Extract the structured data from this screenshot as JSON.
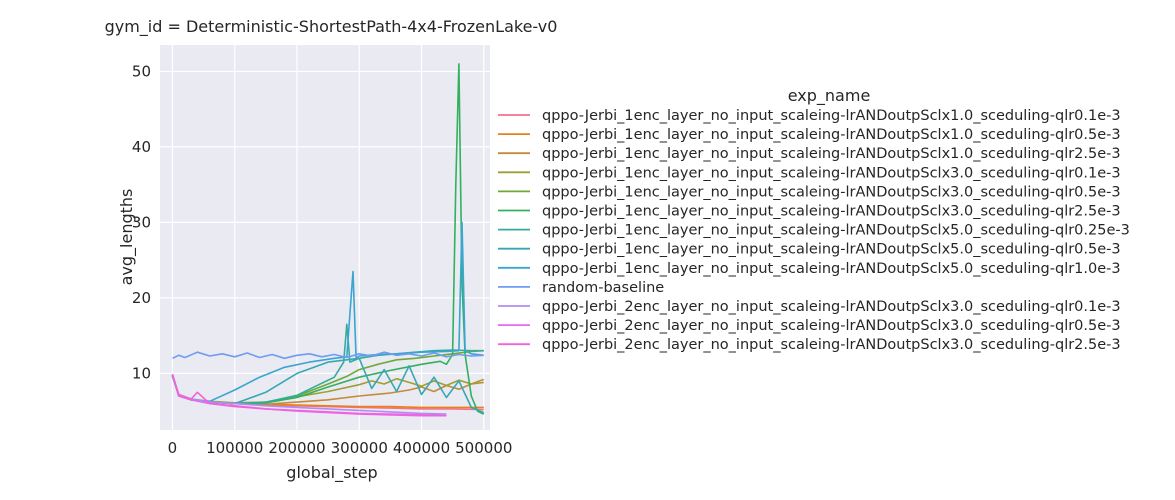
{
  "chart_data": {
    "type": "line",
    "title": "gym_id = Deterministic-ShortestPath-4x4-FrozenLake-v0",
    "xlabel": "global_step",
    "ylabel": "avg_lengths",
    "xlim": [
      -20000,
      510000
    ],
    "ylim": [
      2.5,
      53.5
    ],
    "x_ticks": [
      0,
      100000,
      200000,
      300000,
      400000,
      500000
    ],
    "x_tick_labels": [
      "0",
      "100000",
      "200000",
      "300000",
      "400000",
      "500000"
    ],
    "y_ticks": [
      10,
      20,
      30,
      40,
      50
    ],
    "y_tick_labels": [
      "10",
      "20",
      "30",
      "40",
      "50"
    ],
    "grid": true,
    "legend_title": "exp_name",
    "legend_position": "right",
    "series": [
      {
        "name": "qppo-Jerbi_1enc_layer_no_input_scaleing-lrANDoutpSclx1.0_sceduling-qlr0.1e-3",
        "color": "#f77189",
        "x": [
          0,
          10000,
          30000,
          60000,
          100000,
          150000,
          200000,
          250000,
          300000,
          350000,
          400000,
          450000,
          500000
        ],
        "y": [
          9.8,
          7.0,
          6.5,
          6.2,
          6.0,
          5.8,
          5.7,
          5.6,
          5.5,
          5.4,
          5.3,
          5.3,
          5.2
        ]
      },
      {
        "name": "qppo-Jerbi_1enc_layer_no_input_scaleing-lrANDoutpSclx1.0_sceduling-qlr0.5e-3",
        "color": "#e7811c",
        "x": [
          0,
          10000,
          30000,
          60000,
          100000,
          150000,
          200000,
          250000,
          300000,
          350000,
          400000,
          450000,
          500000
        ],
        "y": [
          9.6,
          7.2,
          6.6,
          6.2,
          6.0,
          5.9,
          5.8,
          5.7,
          5.6,
          5.6,
          5.5,
          5.5,
          5.5
        ]
      },
      {
        "name": "qppo-Jerbi_1enc_layer_no_input_scaleing-lrANDoutpSclx1.0_sceduling-qlr2.5e-3",
        "color": "#c48a3a",
        "x": [
          0,
          10000,
          30000,
          60000,
          100000,
          150000,
          200000,
          250000,
          300000,
          350000,
          380000,
          400000,
          420000,
          440000,
          460000,
          480000,
          500000
        ],
        "y": [
          9.7,
          7.2,
          6.6,
          6.2,
          6.0,
          5.9,
          6.2,
          6.5,
          7.0,
          7.4,
          7.8,
          8.2,
          7.6,
          8.4,
          7.9,
          8.6,
          8.8
        ]
      },
      {
        "name": "qppo-Jerbi_1enc_layer_no_input_scaleing-lrANDoutpSclx3.0_sceduling-qlr0.1e-3",
        "color": "#a19e32",
        "x": [
          0,
          10000,
          30000,
          60000,
          100000,
          150000,
          200000,
          250000,
          300000,
          320000,
          340000,
          360000,
          380000,
          400000,
          420000,
          440000,
          460000,
          480000,
          500000
        ],
        "y": [
          9.7,
          7.1,
          6.6,
          6.3,
          6.1,
          6.2,
          6.9,
          7.6,
          8.5,
          9.0,
          8.6,
          9.3,
          8.8,
          8.3,
          9.0,
          8.4,
          9.1,
          8.6,
          9.2
        ]
      },
      {
        "name": "qppo-Jerbi_1enc_layer_no_input_scaleing-lrANDoutpSclx3.0_sceduling-qlr0.5e-3",
        "color": "#6ea935",
        "x": [
          0,
          10000,
          30000,
          60000,
          100000,
          150000,
          200000,
          250000,
          280000,
          300000,
          330000,
          360000,
          390000,
          420000,
          450000,
          480000,
          500000
        ],
        "y": [
          9.8,
          7.2,
          6.5,
          6.2,
          6.0,
          6.1,
          7.0,
          8.6,
          9.6,
          10.5,
          11.2,
          11.8,
          12.0,
          12.3,
          12.6,
          12.9,
          13.0
        ]
      },
      {
        "name": "qppo-Jerbi_1enc_layer_no_input_scaleing-lrANDoutpSclx3.0_sceduling-qlr2.5e-3",
        "color": "#33b05e",
        "x": [
          0,
          10000,
          30000,
          60000,
          100000,
          150000,
          200000,
          250000,
          300000,
          350000,
          400000,
          430000,
          440000,
          450000,
          455000,
          460000,
          465000,
          470000,
          480000,
          490000,
          500000
        ],
        "y": [
          9.7,
          7.1,
          6.6,
          6.2,
          6.0,
          6.1,
          6.8,
          8.2,
          9.5,
          10.4,
          11.2,
          11.6,
          11.2,
          12.5,
          35.0,
          51.0,
          22.0,
          12.5,
          7.0,
          5.0,
          4.6
        ]
      },
      {
        "name": "qppo-Jerbi_1enc_layer_no_input_scaleing-lrANDoutpSclx5.0_sceduling-qlr0.25e-3",
        "color": "#35ac9a",
        "x": [
          0,
          10000,
          30000,
          60000,
          100000,
          150000,
          200000,
          230000,
          260000,
          275000,
          280000,
          285000,
          300000,
          330000,
          360000,
          390000,
          420000,
          450000,
          480000,
          500000
        ],
        "y": [
          9.7,
          7.1,
          6.5,
          6.2,
          6.0,
          6.2,
          7.1,
          8.3,
          9.5,
          11.5,
          16.5,
          11.5,
          12.0,
          12.4,
          12.6,
          12.8,
          13.0,
          13.1,
          13.0,
          13.0
        ]
      },
      {
        "name": "qppo-Jerbi_1enc_layer_no_input_scaleing-lrANDoutpSclx5.0_sceduling-qlr0.5e-3",
        "color": "#37a8b3",
        "x": [
          0,
          10000,
          30000,
          60000,
          100000,
          150000,
          200000,
          250000,
          300000,
          320000,
          340000,
          360000,
          380000,
          400000,
          420000,
          440000,
          460000,
          480000,
          500000
        ],
        "y": [
          9.6,
          7.1,
          6.5,
          6.2,
          6.0,
          7.5,
          10.0,
          11.5,
          12.0,
          8.0,
          10.5,
          7.6,
          11.0,
          7.2,
          9.5,
          6.8,
          9.0,
          5.5,
          4.8
        ]
      },
      {
        "name": "qppo-Jerbi_1enc_layer_no_input_scaleing-lrANDoutpSclx5.0_sceduling-qlr1.0e-3",
        "color": "#3aa5d0",
        "x": [
          0,
          10000,
          30000,
          60000,
          100000,
          140000,
          180000,
          220000,
          260000,
          280000,
          290000,
          295000,
          300000,
          330000,
          360000,
          400000,
          440000,
          460000,
          465000,
          470000,
          480000,
          500000
        ],
        "y": [
          9.7,
          7.1,
          6.5,
          6.3,
          7.8,
          9.5,
          10.8,
          11.5,
          12.0,
          12.2,
          23.5,
          12.0,
          12.3,
          12.5,
          12.6,
          12.8,
          12.9,
          13.0,
          30.0,
          13.0,
          12.6,
          12.4
        ]
      },
      {
        "name": "random-baseline",
        "color": "#6f9bf2",
        "x": [
          0,
          10000,
          20000,
          40000,
          60000,
          80000,
          100000,
          120000,
          140000,
          160000,
          180000,
          200000,
          220000,
          240000,
          260000,
          280000,
          300000,
          320000,
          340000,
          360000,
          380000,
          400000,
          420000,
          440000,
          460000,
          480000,
          500000
        ],
        "y": [
          12.0,
          12.4,
          12.1,
          12.8,
          12.3,
          12.6,
          12.2,
          12.7,
          12.1,
          12.5,
          12.0,
          12.4,
          12.6,
          12.2,
          12.5,
          12.1,
          12.6,
          12.3,
          12.8,
          12.4,
          12.6,
          12.3,
          12.7,
          12.2,
          12.5,
          12.3,
          12.4
        ]
      },
      {
        "name": "qppo-Jerbi_2enc_layer_no_input_scaleing-lrANDoutpSclx3.0_sceduling-qlr0.1e-3",
        "color": "#ae8ef2",
        "x": [
          0,
          10000,
          30000,
          60000,
          100000,
          150000,
          200000,
          250000,
          300000,
          350000,
          400000,
          440000
        ],
        "y": [
          9.8,
          7.2,
          6.6,
          6.2,
          6.0,
          5.7,
          5.5,
          5.3,
          5.1,
          4.9,
          4.7,
          4.6
        ]
      },
      {
        "name": "qppo-Jerbi_2enc_layer_no_input_scaleing-lrANDoutpSclx3.0_sceduling-qlr0.5e-3",
        "color": "#e866f4",
        "x": [
          0,
          10000,
          30000,
          60000,
          100000,
          150000,
          200000,
          250000,
          300000,
          350000,
          400000,
          440000
        ],
        "y": [
          9.8,
          7.0,
          6.5,
          6.0,
          5.7,
          5.3,
          5.0,
          4.8,
          4.6,
          4.5,
          4.4,
          4.4
        ]
      },
      {
        "name": "qppo-Jerbi_2enc_layer_no_input_scaleing-lrANDoutpSclx3.0_sceduling-qlr2.5e-3",
        "color": "#f461dd",
        "x": [
          0,
          10000,
          30000,
          40000,
          60000,
          100000,
          150000,
          200000,
          250000,
          300000,
          350000,
          400000,
          440000
        ],
        "y": [
          9.9,
          7.1,
          6.6,
          7.5,
          6.0,
          5.6,
          5.3,
          5.1,
          4.9,
          4.7,
          4.6,
          4.5,
          4.4
        ]
      }
    ]
  }
}
